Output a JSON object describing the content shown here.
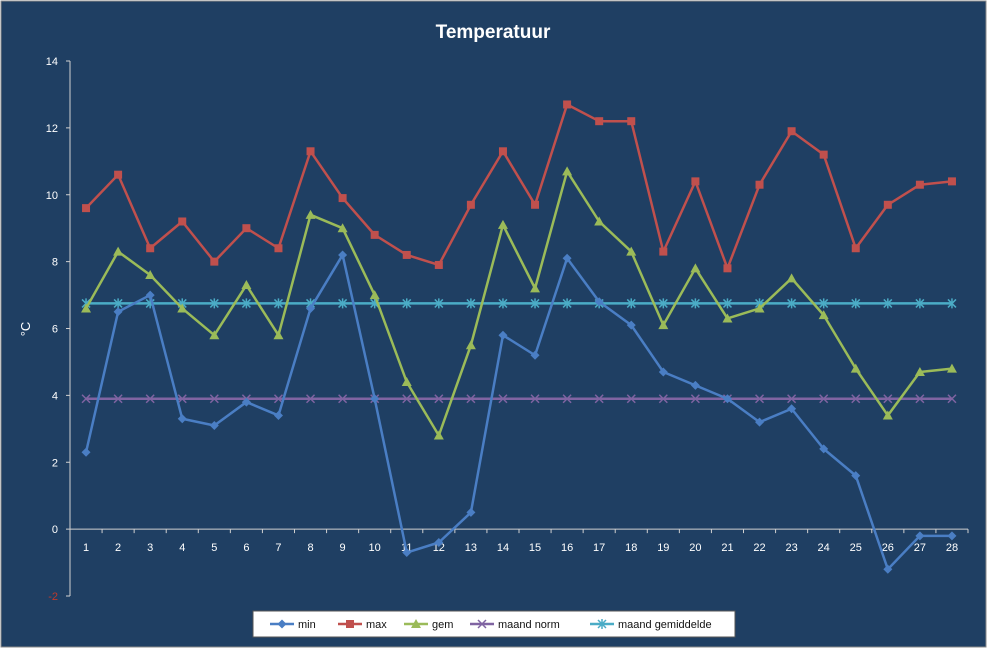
{
  "chart_data": {
    "type": "line",
    "title": "Temperatuur",
    "xlabel": "",
    "ylabel": "°C",
    "categories": [
      "1",
      "2",
      "3",
      "4",
      "5",
      "6",
      "7",
      "8",
      "9",
      "10",
      "11",
      "12",
      "13",
      "14",
      "15",
      "16",
      "17",
      "18",
      "19",
      "20",
      "21",
      "22",
      "23",
      "24",
      "25",
      "26",
      "27",
      "28"
    ],
    "ylim": [
      -2,
      14
    ],
    "yticks": [
      -2,
      0,
      2,
      4,
      6,
      8,
      10,
      12,
      14
    ],
    "grid": false,
    "legend_position": "bottom",
    "background_color": "#1f3f63",
    "series": [
      {
        "name": "min",
        "color": "#4a7ec4",
        "marker": "diamond",
        "values": [
          2.3,
          6.5,
          7.0,
          3.3,
          3.1,
          3.8,
          3.4,
          6.6,
          8.2,
          3.9,
          -0.7,
          -0.4,
          0.5,
          5.8,
          5.2,
          8.1,
          6.8,
          6.1,
          4.7,
          4.3,
          3.9,
          3.2,
          3.6,
          2.4,
          1.6,
          -1.2,
          -0.2,
          -0.2
        ]
      },
      {
        "name": "max",
        "color": "#c0504d",
        "marker": "square",
        "values": [
          9.6,
          10.6,
          8.4,
          9.2,
          8.0,
          9.0,
          8.4,
          11.3,
          9.9,
          8.8,
          8.2,
          7.9,
          9.7,
          11.3,
          9.7,
          12.7,
          12.2,
          12.2,
          8.3,
          10.4,
          7.8,
          10.3,
          11.9,
          11.2,
          8.4,
          9.7,
          10.3,
          10.4
        ]
      },
      {
        "name": "gem",
        "color": "#9bbb59",
        "marker": "triangle",
        "values": [
          6.6,
          8.3,
          7.6,
          6.6,
          5.8,
          7.3,
          5.8,
          9.4,
          9.0,
          7.0,
          4.4,
          2.8,
          5.5,
          9.1,
          7.2,
          10.7,
          9.2,
          8.3,
          6.1,
          7.8,
          6.3,
          6.6,
          7.5,
          6.4,
          4.8,
          3.4,
          4.7,
          4.8
        ]
      },
      {
        "name": "maand norm",
        "color": "#8064a2",
        "marker": "x",
        "values": [
          3.9,
          3.9,
          3.9,
          3.9,
          3.9,
          3.9,
          3.9,
          3.9,
          3.9,
          3.9,
          3.9,
          3.9,
          3.9,
          3.9,
          3.9,
          3.9,
          3.9,
          3.9,
          3.9,
          3.9,
          3.9,
          3.9,
          3.9,
          3.9,
          3.9,
          3.9,
          3.9,
          3.9
        ]
      },
      {
        "name": "maand gemiddelde",
        "color": "#4bacc6",
        "marker": "star",
        "values": [
          6.75,
          6.75,
          6.75,
          6.75,
          6.75,
          6.75,
          6.75,
          6.75,
          6.75,
          6.75,
          6.75,
          6.75,
          6.75,
          6.75,
          6.75,
          6.75,
          6.75,
          6.75,
          6.75,
          6.75,
          6.75,
          6.75,
          6.75,
          6.75,
          6.75,
          6.75,
          6.75,
          6.75
        ]
      }
    ]
  }
}
